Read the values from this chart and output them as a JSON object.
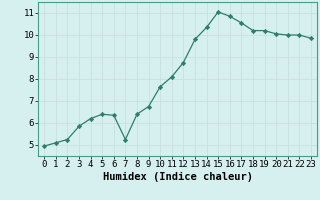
{
  "x": [
    0,
    1,
    2,
    3,
    4,
    5,
    6,
    7,
    8,
    9,
    10,
    11,
    12,
    13,
    14,
    15,
    16,
    17,
    18,
    19,
    20,
    21,
    22,
    23
  ],
  "y": [
    4.95,
    5.1,
    5.25,
    5.85,
    6.2,
    6.4,
    6.35,
    5.25,
    6.4,
    6.75,
    7.65,
    8.1,
    8.75,
    9.8,
    10.35,
    11.05,
    10.85,
    10.55,
    10.2,
    10.2,
    10.05,
    10.0,
    10.0,
    9.85
  ],
  "line_color": "#2e7d6e",
  "marker": "D",
  "marker_size": 2.2,
  "bg_color": "#d6f0ef",
  "grid_color": "#c8e0de",
  "xlabel": "Humidex (Indice chaleur)",
  "ylim": [
    4.5,
    11.5
  ],
  "xlim": [
    -0.5,
    23.5
  ],
  "yticks": [
    5,
    6,
    7,
    8,
    9,
    10,
    11
  ],
  "xticks": [
    0,
    1,
    2,
    3,
    4,
    5,
    6,
    7,
    8,
    9,
    10,
    11,
    12,
    13,
    14,
    15,
    16,
    17,
    18,
    19,
    20,
    21,
    22,
    23
  ],
  "tick_fontsize": 6.5,
  "xlabel_fontsize": 7.5,
  "border_color": "#4a9a8a"
}
